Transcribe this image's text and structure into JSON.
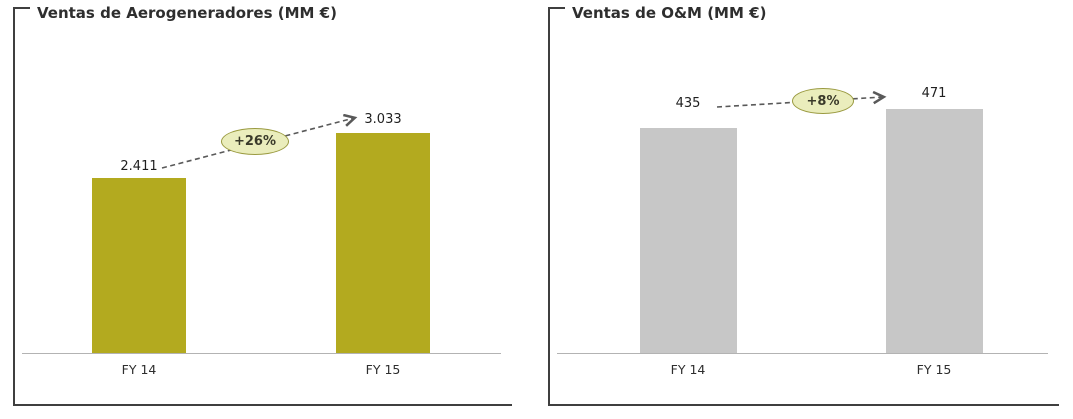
{
  "page": {
    "background": "#ffffff"
  },
  "chart_data": [
    {
      "type": "bar",
      "title": "Ventas de Aerogeneradores (MM €)",
      "categories": [
        "FY 14",
        "FY 15"
      ],
      "values": [
        2411,
        3033
      ],
      "value_labels": [
        "2.411",
        "3.033"
      ],
      "growth_label": "+26%",
      "ylim": [
        0,
        4000
      ],
      "grid": false,
      "legend": "none",
      "bar_color": "#b3aa1f",
      "badge_fill": "#eaedbc",
      "badge_border": "#9a9a40"
    },
    {
      "type": "bar",
      "title": "Ventas de O&M (MM €)",
      "categories": [
        "FY 14",
        "FY 15"
      ],
      "values": [
        435,
        471
      ],
      "value_labels": [
        "435",
        "471"
      ],
      "growth_label": "+8%",
      "ylim": [
        0,
        560
      ],
      "grid": false,
      "legend": "none",
      "bar_color": "#c7c7c7",
      "badge_fill": "#eaedbc",
      "badge_border": "#9a9a40"
    }
  ]
}
